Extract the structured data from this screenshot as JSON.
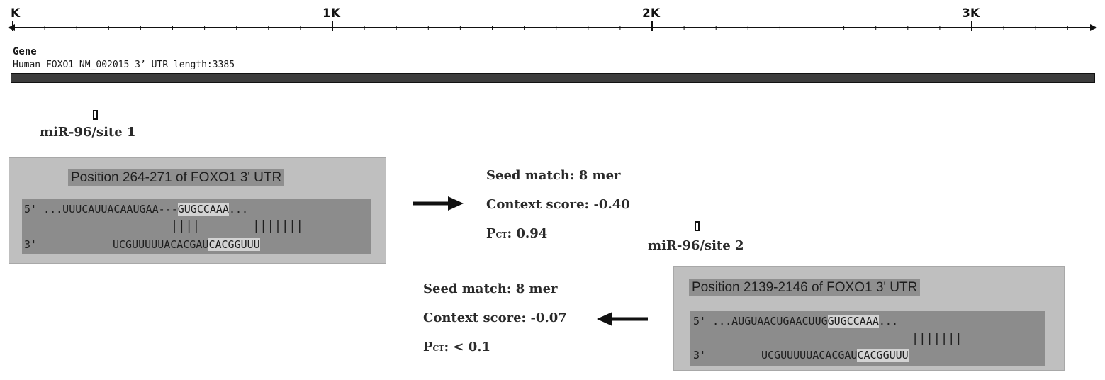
{
  "ruler": {
    "labels": [
      "K",
      "1K",
      "2K",
      "3K"
    ]
  },
  "gene": {
    "header": "Gene",
    "description": "Human FOXO1 NM_002015 3’ UTR length:3385"
  },
  "sites": [
    {
      "label": "miR-96/site 1",
      "panel_title": "Position 264-271 of FOXO1 3' UTR",
      "utr_prefix": "5'",
      "utr_seq": " ...UUUCAUUACAAUGAA---",
      "utr_seed": "GUGCCAAA",
      "utr_suffix": "...",
      "pairing": "|||| ",
      "pairing_seed": "|||||||",
      "mirna_prefix": "3'",
      "mirna_seq": "UCGUUUUUACACGAU",
      "mirna_seed": "CACGGUUU",
      "seed_match": "Seed match: 8 mer",
      "context_score": "Context score: -0.40",
      "pct_label": "P",
      "pct_sub": "CT",
      "pct_value": ": 0.94"
    },
    {
      "label": "miR-96/site 2",
      "panel_title": "Position 2139-2146 of FOXO1 3' UTR",
      "utr_prefix": "5'",
      "utr_seq": " ...AUGUAACUGAACUUG",
      "utr_seed": "GUGCCAAA",
      "utr_suffix": "...",
      "pairing_seed": "|||||||",
      "mirna_prefix": "3'",
      "mirna_seq": "UCGUUUUUACACGAU",
      "mirna_seed": "CACGGUUU",
      "seed_match": "Seed match: 8 mer",
      "context_score": "Context score: -0.07",
      "pct_label": "P",
      "pct_sub": "CT",
      "pct_value": ": < 0.1"
    }
  ]
}
